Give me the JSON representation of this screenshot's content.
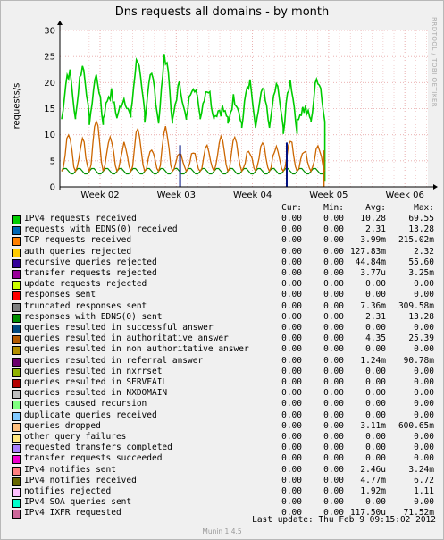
{
  "chart_data": {
    "type": "line",
    "title": "Dns requests  all domains - by month",
    "ylabel": "requests/s",
    "ylim": [
      0,
      30
    ],
    "yticks": [
      0,
      5,
      10,
      15,
      20,
      25,
      30
    ],
    "xticks": [
      "Week 02",
      "Week 03",
      "Week 04",
      "Week 05",
      "Week 06"
    ],
    "grid": true,
    "watermark": "RRDTOOL / TOBI OETIKER",
    "series": [
      {
        "name": "IPv4 requests received",
        "color": "#00cc00",
        "avg": 10.28,
        "peaks": [
          22,
          23,
          21,
          18,
          17,
          24,
          21,
          25,
          19,
          20,
          19,
          15,
          17,
          20,
          18,
          19,
          20,
          15,
          21
        ]
      },
      {
        "name": "queries resulted in authoritative answer",
        "color": "#cc6600",
        "avg": 4.35,
        "peaks": [
          10,
          9,
          13,
          10,
          8,
          11,
          7,
          11,
          7,
          7,
          8,
          10,
          9,
          7,
          9,
          8,
          9,
          7,
          8
        ]
      },
      {
        "name": "recursive queries rejected",
        "color": "#001080",
        "spikes": [
          {
            "week": 3.05,
            "value": 8
          },
          {
            "week": 4.45,
            "value": 8.5
          }
        ]
      }
    ],
    "legend": {
      "columns": [
        "Cur:",
        "Min:",
        "Avg:",
        "Max:"
      ],
      "rows": [
        {
          "name": "IPv4 requests received",
          "color": "#00cc00",
          "cur": "0.00",
          "min": "0.00",
          "avg": "10.28",
          "max": "69.55"
        },
        {
          "name": "requests with EDNS(0) received",
          "color": "#0066b3",
          "cur": "0.00",
          "min": "0.00",
          "avg": "2.31",
          "max": "13.28"
        },
        {
          "name": "TCP requests received",
          "color": "#ff8000",
          "cur": "0.00",
          "min": "0.00",
          "avg": "3.99m",
          "max": "215.02m"
        },
        {
          "name": "auth queries rejected",
          "color": "#ffcc00",
          "cur": "0.00",
          "min": "0.00",
          "avg": "127.83m",
          "max": "2.32"
        },
        {
          "name": "recursive queries rejected",
          "color": "#330099",
          "cur": "0.00",
          "min": "0.00",
          "avg": "44.84m",
          "max": "55.60"
        },
        {
          "name": "transfer requests rejected",
          "color": "#990099",
          "cur": "0.00",
          "min": "0.00",
          "avg": "3.77u",
          "max": "3.25m"
        },
        {
          "name": "update requests rejected",
          "color": "#ccff00",
          "cur": "0.00",
          "min": "0.00",
          "avg": "0.00",
          "max": "0.00"
        },
        {
          "name": "responses sent",
          "color": "#ff0000",
          "cur": "0.00",
          "min": "0.00",
          "avg": "0.00",
          "max": "0.00"
        },
        {
          "name": "truncated responses sent",
          "color": "#808080",
          "cur": "0.00",
          "min": "0.00",
          "avg": "7.36m",
          "max": "309.58m"
        },
        {
          "name": "responses with EDNS(0) sent",
          "color": "#008f00",
          "cur": "0.00",
          "min": "0.00",
          "avg": "2.31",
          "max": "13.28"
        },
        {
          "name": "queries resulted in successful answer",
          "color": "#00487d",
          "cur": "0.00",
          "min": "0.00",
          "avg": "0.00",
          "max": "0.00"
        },
        {
          "name": "queries resulted in authoritative answer",
          "color": "#b35a00",
          "cur": "0.00",
          "min": "0.00",
          "avg": "4.35",
          "max": "25.39"
        },
        {
          "name": "queries resulted in non authoritative answer",
          "color": "#b38f00",
          "cur": "0.00",
          "min": "0.00",
          "avg": "0.00",
          "max": "0.00"
        },
        {
          "name": "queries resulted in referral answer",
          "color": "#6b006b",
          "cur": "0.00",
          "min": "0.00",
          "avg": "1.24m",
          "max": "90.78m"
        },
        {
          "name": "queries resulted in nxrrset",
          "color": "#8fb300",
          "cur": "0.00",
          "min": "0.00",
          "avg": "0.00",
          "max": "0.00"
        },
        {
          "name": "queries resulted in SERVFAIL",
          "color": "#b30000",
          "cur": "0.00",
          "min": "0.00",
          "avg": "0.00",
          "max": "0.00"
        },
        {
          "name": "queries resulted in NXDOMAIN",
          "color": "#bebebe",
          "cur": "0.00",
          "min": "0.00",
          "avg": "0.00",
          "max": "0.00"
        },
        {
          "name": "queries caused recursion",
          "color": "#80ff80",
          "cur": "0.00",
          "min": "0.00",
          "avg": "0.00",
          "max": "0.00"
        },
        {
          "name": "duplicate queries received",
          "color": "#80c9ff",
          "cur": "0.00",
          "min": "0.00",
          "avg": "0.00",
          "max": "0.00"
        },
        {
          "name": "queries dropped",
          "color": "#ffc080",
          "cur": "0.00",
          "min": "0.00",
          "avg": "3.11m",
          "max": "600.65m"
        },
        {
          "name": "other query failures",
          "color": "#ffe680",
          "cur": "0.00",
          "min": "0.00",
          "avg": "0.00",
          "max": "0.00"
        },
        {
          "name": "requested transfers completed",
          "color": "#aa80ff",
          "cur": "0.00",
          "min": "0.00",
          "avg": "0.00",
          "max": "0.00"
        },
        {
          "name": "transfer requests succeeded",
          "color": "#ee00cc",
          "cur": "0.00",
          "min": "0.00",
          "avg": "0.00",
          "max": "0.00"
        },
        {
          "name": "IPv4 notifies sent",
          "color": "#ff8080",
          "cur": "0.00",
          "min": "0.00",
          "avg": "2.46u",
          "max": "3.24m"
        },
        {
          "name": "IPv4 notifies received",
          "color": "#666600",
          "cur": "0.00",
          "min": "0.00",
          "avg": "4.77m",
          "max": "6.72"
        },
        {
          "name": "notifies rejected",
          "color": "#ffbfff",
          "cur": "0.00",
          "min": "0.00",
          "avg": "1.92m",
          "max": "1.11"
        },
        {
          "name": "IPv4 SOA queries sent",
          "color": "#00ffcc",
          "cur": "0.00",
          "min": "0.00",
          "avg": "0.00",
          "max": "0.00"
        },
        {
          "name": "IPv4 IXFR requested",
          "color": "#cc6699",
          "cur": "0.00",
          "min": "0.00",
          "avg": "117.50u",
          "max": "71.52m"
        }
      ]
    }
  },
  "footer": {
    "last_update": "Last update:  Thu Feb  9 09:15:02 2012",
    "version": "Munin 1.4.5"
  }
}
